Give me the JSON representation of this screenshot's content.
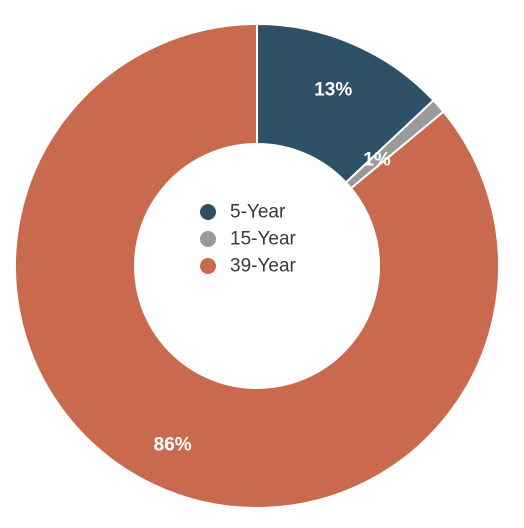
{
  "chart_data": {
    "type": "pie",
    "donut": true,
    "categories": [
      "5-Year",
      "15-Year",
      "39-Year"
    ],
    "values": [
      13,
      1,
      86
    ],
    "labels": [
      "13%",
      "1%",
      "86%"
    ],
    "colors": [
      "#2f5168",
      "#9a9a9a",
      "#c96a4e"
    ],
    "label_colors": [
      "#ffffff",
      "#ffffff",
      "#ffffff"
    ],
    "start_angle_deg": 0,
    "direction": "clockwise",
    "legend": {
      "placement": "center",
      "entries": [
        "5-Year",
        "15-Year",
        "39-Year"
      ]
    },
    "title": ""
  }
}
